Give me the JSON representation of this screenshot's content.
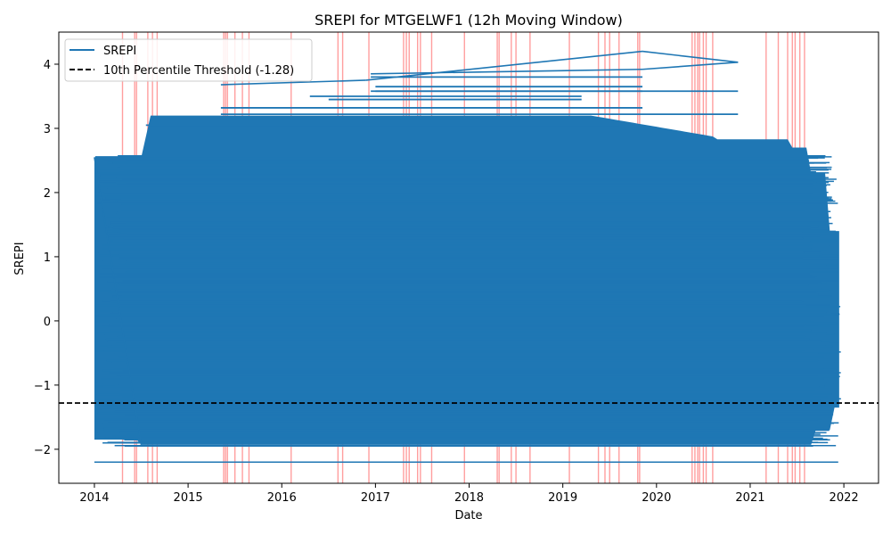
{
  "chart_data": {
    "type": "line",
    "title": "SREPI for MTGELWF1 (12h Moving Window)",
    "xlabel": "Date",
    "ylabel": "SREPI",
    "xlim": [
      2013.62,
      2022.37
    ],
    "ylim": [
      -2.53,
      4.5
    ],
    "x_ticks": [
      2014,
      2015,
      2016,
      2017,
      2018,
      2019,
      2020,
      2021,
      2022
    ],
    "x_tick_labels": [
      "2014",
      "2015",
      "2016",
      "2017",
      "2018",
      "2019",
      "2020",
      "2021",
      "2022"
    ],
    "y_ticks": [
      -2,
      -1,
      0,
      1,
      2,
      3,
      4
    ],
    "y_tick_labels": [
      "−2",
      "−1",
      "0",
      "1",
      "2",
      "3",
      "4"
    ],
    "grid": false,
    "legend": {
      "placement": "top-left",
      "entries": [
        "SREPI",
        "10th Percentile Threshold (-1.28)"
      ]
    },
    "colors": {
      "series": "#1f77b4",
      "threshold": "#000000",
      "event_band": "#ff0000"
    },
    "series": [
      {
        "name": "SREPI",
        "description_points": [
          {
            "x": 2014.0,
            "y": -2.2
          },
          {
            "x": 2021.94,
            "y": -2.2
          },
          {
            "x": 2014.0,
            "y": 2.55
          },
          {
            "x": 2014.5,
            "y": -1.93
          },
          {
            "x": 2018.3,
            "y": -2.2
          },
          {
            "x": 2015.35,
            "y": 3.68
          },
          {
            "x": 2016.9,
            "y": 3.75
          },
          {
            "x": 2019.85,
            "y": 4.2
          },
          {
            "x": 2020.87,
            "y": 4.03
          },
          {
            "x": 2019.85,
            "y": 3.92
          },
          {
            "x": 2016.95,
            "y": 3.85
          },
          {
            "x": 2020.87,
            "y": 3.58
          },
          {
            "x": 2020.87,
            "y": 3.22
          },
          {
            "x": 2021.94,
            "y": 1.4
          },
          {
            "x": 2021.94,
            "y": -1.3
          }
        ]
      }
    ],
    "threshold": {
      "label": "10th Percentile Threshold (-1.28)",
      "y": -1.28
    },
    "event_lines": [
      2014.3,
      2014.43,
      2014.45,
      2014.57,
      2014.62,
      2014.67,
      2015.38,
      2015.4,
      2015.42,
      2015.5,
      2015.58,
      2015.65,
      2016.1,
      2016.6,
      2016.65,
      2016.93,
      2017.3,
      2017.33,
      2017.36,
      2017.45,
      2017.48,
      2017.6,
      2017.95,
      2018.3,
      2018.32,
      2018.45,
      2018.5,
      2018.65,
      2019.07,
      2019.38,
      2019.45,
      2019.5,
      2019.6,
      2019.8,
      2019.82,
      2020.38,
      2020.41,
      2020.44,
      2020.46,
      2020.5,
      2020.53,
      2020.6,
      2021.17,
      2021.3,
      2021.4,
      2021.45,
      2021.48,
      2021.53,
      2021.58
    ]
  }
}
